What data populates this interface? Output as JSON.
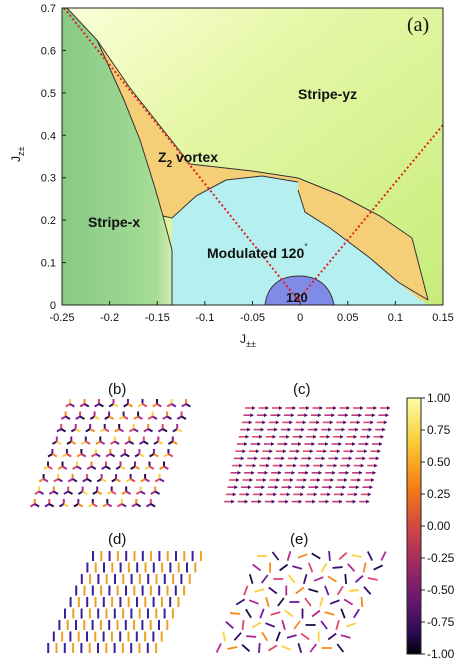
{
  "figure": {
    "panel_a": {
      "label": "(a)",
      "xlabel_main": "J",
      "xlabel_sub": "±±",
      "ylabel_main": "J",
      "ylabel_sub": "z±",
      "regions": {
        "stripe_yz": "Stripe-yz",
        "stripe_x": "Stripe-x",
        "z2_main": "Z",
        "z2_sub": "2",
        "z2_rest": " vortex",
        "modulated": "Modulated 120",
        "degree": "°",
        "region_120": "120"
      },
      "colors": {
        "stripe_yz": "#d4f08a",
        "stripe_x": "#8fcc88",
        "vortex": "#f5cf78",
        "modulated": "#b5efef",
        "region_120": "#7f8be6",
        "dotted_line": "#e02020"
      }
    },
    "panel_labels": {
      "b": "(b)",
      "c": "(c)",
      "d": "(d)",
      "e": "(e)"
    },
    "colorbar": {
      "ticks": [
        "1.00",
        "0.75",
        "0.50",
        "0.25",
        "0.00",
        "-0.25",
        "-0.50",
        "-0.75",
        "-1.00"
      ],
      "min": -1.0,
      "max": 1.0
    }
  },
  "chart_data": {
    "type": "area",
    "xlabel": "J±±",
    "ylabel": "Jz±",
    "xlim": [
      -0.25,
      0.15
    ],
    "ylim": [
      0,
      0.7
    ],
    "x_ticks": [
      "-0.25",
      "-0.2",
      "-0.15",
      "-0.1",
      "-0.05",
      "0",
      "0.05",
      "0.1",
      "0.15"
    ],
    "y_ticks": [
      "0",
      "0.1",
      "0.2",
      "0.3",
      "0.4",
      "0.5",
      "0.6",
      "0.7"
    ],
    "x_tick_values": [
      -0.25,
      -0.2,
      -0.15,
      -0.1,
      -0.05,
      0,
      0.05,
      0.1,
      0.15
    ],
    "y_tick_values": [
      0,
      0.1,
      0.2,
      0.3,
      0.4,
      0.5,
      0.6,
      0.7
    ],
    "boundaries": {
      "stripe_x_right": [
        [
          -0.245,
          0.7
        ],
        [
          -0.21,
          0.6
        ],
        [
          -0.175,
          0.43
        ],
        [
          -0.16,
          0.35
        ],
        [
          -0.147,
          0.25
        ],
        [
          -0.138,
          0.2
        ],
        [
          -0.137,
          0.0
        ]
      ],
      "vortex_top": [
        [
          -0.21,
          0.6
        ],
        [
          -0.18,
          0.52
        ],
        [
          -0.145,
          0.45
        ],
        [
          -0.1,
          0.4
        ],
        [
          -0.04,
          0.36
        ],
        [
          0.02,
          0.33
        ],
        [
          0.08,
          0.29
        ],
        [
          0.12,
          0.22
        ],
        [
          0.15,
          0.0
        ]
      ],
      "modulated_top": [
        [
          -0.138,
          0.2
        ],
        [
          -0.11,
          0.25
        ],
        [
          -0.07,
          0.29
        ],
        [
          -0.04,
          0.3
        ],
        [
          -0.01,
          0.29
        ],
        [
          0.01,
          0.27
        ],
        [
          0.03,
          0.2
        ],
        [
          0.06,
          0.16
        ],
        [
          0.09,
          0.1
        ],
        [
          0.12,
          0.04
        ],
        [
          0.15,
          0.0
        ]
      ],
      "vortex_right_lobe": [
        [
          -0.0,
          0.29
        ],
        [
          0.04,
          0.28
        ],
        [
          0.08,
          0.23
        ],
        [
          0.115,
          0.12
        ],
        [
          0.145,
          0.0
        ],
        [
          0.125,
          0.03
        ],
        [
          0.09,
          0.09
        ],
        [
          0.05,
          0.16
        ],
        [
          0.02,
          0.2
        ],
        [
          0.0,
          0.29
        ]
      ],
      "region_120_dome": [
        [
          -0.04,
          0.0
        ],
        [
          -0.03,
          0.035
        ],
        [
          -0.01,
          0.055
        ],
        [
          0.01,
          0.058
        ],
        [
          0.03,
          0.045
        ],
        [
          0.05,
          0.0
        ]
      ]
    },
    "dotted_lines": [
      {
        "from": [
          -0.25,
          0.7
        ],
        "to": [
          0.0,
          0.02
        ]
      },
      {
        "from": [
          0.0,
          0.02
        ],
        "to": [
          0.15,
          0.42
        ]
      }
    ]
  }
}
